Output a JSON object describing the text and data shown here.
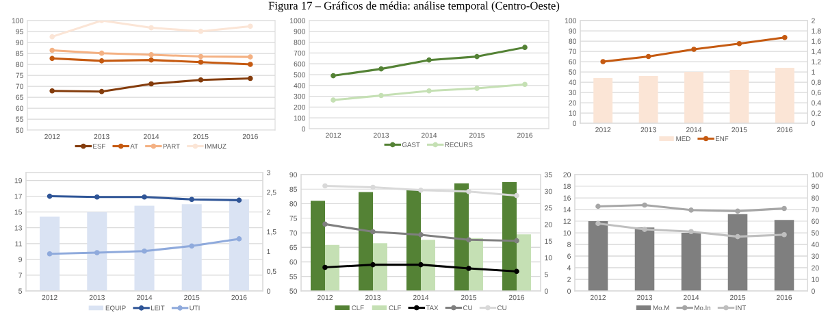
{
  "chart_data": [
    {
      "type": "line",
      "categories": [
        "2012",
        "2013",
        "2014",
        "2015",
        "2016"
      ],
      "ylim": [
        50,
        100
      ],
      "yticks": [
        50,
        55,
        60,
        65,
        70,
        75,
        80,
        85,
        90,
        95,
        100
      ],
      "grid": "y",
      "legend": "bottom",
      "marker": "circle",
      "series": [
        {
          "name": "ESF",
          "color": "#843c0c",
          "values": [
            67.9,
            67.6,
            71.1,
            72.9,
            73.6
          ]
        },
        {
          "name": "AT",
          "color": "#c55a11",
          "values": [
            82.7,
            81.6,
            82.0,
            81.0,
            80.0
          ]
        },
        {
          "name": "PART",
          "color": "#f4b183",
          "values": [
            86.4,
            85.1,
            84.4,
            83.6,
            83.4
          ]
        },
        {
          "name": "IMMUZ",
          "color": "#fbe5d6",
          "values": [
            92.6,
            100.0,
            96.7,
            95.1,
            97.4
          ]
        }
      ]
    },
    {
      "type": "line",
      "title": "Figura 17 – Gráficos de média: análise temporal (Centro-Oeste)",
      "categories": [
        "2012",
        "2013",
        "2014",
        "2015",
        "2016"
      ],
      "ylim": [
        0,
        1000
      ],
      "yticks": [
        0,
        100,
        200,
        300,
        400,
        500,
        600,
        700,
        800,
        900,
        1000
      ],
      "grid": "y",
      "legend": "bottom",
      "marker": "circle",
      "series": [
        {
          "name": "GAST",
          "color": "#548235",
          "values": [
            490,
            553,
            635,
            667,
            752
          ]
        },
        {
          "name": "RECURS",
          "color": "#c5e0b4",
          "values": [
            265,
            307,
            350,
            373,
            410
          ]
        }
      ]
    },
    {
      "type": "bar",
      "categories": [
        "2012",
        "2013",
        "2014",
        "2015",
        "2016"
      ],
      "ylim": [
        0,
        100
      ],
      "yticks": [
        0,
        10,
        20,
        30,
        40,
        50,
        60,
        70,
        80,
        90,
        100
      ],
      "y2lim": [
        0,
        2
      ],
      "y2ticks": [
        0,
        {
          "value": 0.2,
          "label": "0,2"
        },
        {
          "value": 0.4,
          "label": "0,4"
        },
        {
          "value": 0.6,
          "label": "0,6"
        },
        {
          "value": 0.8,
          "label": "0,8"
        },
        1,
        {
          "value": 1.2,
          "label": "1,2"
        },
        {
          "value": 1.4,
          "label": "1,4"
        },
        {
          "value": 1.6,
          "label": "1,6"
        },
        {
          "value": 1.8,
          "label": "1,8"
        },
        2
      ],
      "grid": "y",
      "legend": "bottom",
      "marker": "circle",
      "series": [
        {
          "name": "MED",
          "type": "bar",
          "color": "#fbe5d6",
          "values": [
            44,
            46,
            50,
            52,
            54
          ]
        },
        {
          "name": "ENF",
          "type": "line",
          "axis": "y2",
          "color": "#c55a11",
          "values": [
            1.2,
            1.3,
            1.44,
            1.55,
            1.67
          ]
        }
      ]
    },
    {
      "type": "bar",
      "categories": [
        "2012",
        "2013",
        "2014",
        "2015",
        "2016"
      ],
      "ylim": [
        5,
        20
      ],
      "yticks": [
        5,
        7,
        9,
        11,
        13,
        15,
        17,
        19
      ],
      "y2lim": [
        0,
        3
      ],
      "y2ticks": [
        0,
        {
          "value": 0.5,
          "label": "0,5"
        },
        1,
        {
          "value": 1.5,
          "label": "1,5"
        },
        2,
        {
          "value": 2.5,
          "label": "2,5"
        },
        3
      ],
      "grid": "y",
      "legend": "bottom",
      "marker": "circle",
      "series": [
        {
          "name": "EQUIP",
          "type": "bar",
          "color": "#dae3f3",
          "values": [
            14.4,
            15.0,
            15.8,
            16.0,
            16.6
          ]
        },
        {
          "name": "LEIT",
          "type": "line",
          "axis": "y2",
          "color": "#2f5597",
          "values": [
            2.4,
            2.38,
            2.38,
            2.32,
            2.3
          ]
        },
        {
          "name": "UTI",
          "type": "line",
          "axis": "y2",
          "color": "#8faadc",
          "values": [
            0.94,
            0.97,
            1.01,
            1.14,
            1.32
          ]
        }
      ]
    },
    {
      "type": "bar",
      "categories": [
        "2012",
        "2013",
        "2014",
        "2015",
        "2016"
      ],
      "ylim": [
        50,
        90
      ],
      "yticks": [
        50,
        55,
        60,
        65,
        70,
        75,
        80,
        85,
        90
      ],
      "y2lim": [
        0,
        35
      ],
      "y2ticks": [
        0,
        5,
        10,
        15,
        20,
        25,
        30,
        35
      ],
      "grid": "y",
      "legend": "bottom",
      "marker": "circle",
      "series": [
        {
          "name": "CLF",
          "type": "bar",
          "color": "#548235",
          "values": [
            81.0,
            84.0,
            84.8,
            87.0,
            87.4
          ]
        },
        {
          "name": "CLF",
          "type": "bar",
          "color": "#c5e0b4",
          "values": [
            65.8,
            66.4,
            67.6,
            68.2,
            69.5
          ]
        },
        {
          "name": "TAX",
          "type": "line",
          "axis": "y2",
          "color": "#000000",
          "values": [
            7.1,
            7.9,
            7.9,
            6.8,
            5.9
          ]
        },
        {
          "name": "CU",
          "type": "line",
          "axis": "y2",
          "color": "#7f7f7f",
          "values": [
            20.1,
            17.8,
            16.9,
            15.4,
            15.1
          ]
        },
        {
          "name": "CU",
          "type": "line",
          "axis": "y2",
          "color": "#d9d9d9",
          "values": [
            31.6,
            31.2,
            30.3,
            29.9,
            28.7
          ]
        }
      ]
    },
    {
      "type": "bar",
      "categories": [
        "2012",
        "2013",
        "2014",
        "2015",
        "2016"
      ],
      "ylim": [
        0,
        20
      ],
      "yticks": [
        0,
        2,
        4,
        6,
        8,
        10,
        12,
        14,
        16,
        18,
        20
      ],
      "y2lim": [
        0,
        100
      ],
      "y2ticks": [
        0,
        10,
        20,
        30,
        40,
        50,
        60,
        70,
        80,
        90,
        100
      ],
      "grid": "y",
      "legend": "bottom",
      "marker": "circle",
      "series": [
        {
          "name": "Mo.M",
          "type": "bar",
          "color": "#7f7f7f",
          "values": [
            12.0,
            10.9,
            10.0,
            13.2,
            12.2
          ]
        },
        {
          "name": "Mo.In",
          "type": "line",
          "axis": "y2",
          "color": "#a6a6a6",
          "values": [
            72.7,
            73.8,
            69.5,
            68.6,
            70.9
          ]
        },
        {
          "name": "INT",
          "type": "line",
          "axis": "y2",
          "color": "#bfbfbf",
          "values": [
            58.0,
            52.9,
            51.0,
            46.7,
            48.4
          ]
        }
      ]
    }
  ]
}
